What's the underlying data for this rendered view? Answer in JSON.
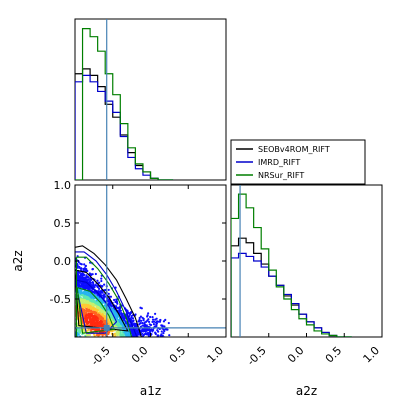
{
  "chart_data": [
    {
      "type": "histogram",
      "panel": "a1z marginal",
      "xlim": [
        -1.0,
        1.0
      ],
      "bins": [
        -1.0,
        -0.9,
        -0.8,
        -0.7,
        -0.6,
        -0.5,
        -0.4,
        -0.3,
        -0.2,
        -0.1,
        0.0,
        0.1,
        0.2,
        0.3
      ],
      "series": [
        {
          "name": "SEOBv4ROM_RIFT",
          "color": "#000000",
          "values": [
            0.66,
            0.69,
            0.65,
            0.58,
            0.47,
            0.39,
            0.28,
            0.17,
            0.09,
            0.05,
            0.01,
            0.0,
            0.0
          ]
        },
        {
          "name": "IMRD_RIFT",
          "color": "#0000cc",
          "values": [
            0.61,
            0.65,
            0.61,
            0.55,
            0.49,
            0.42,
            0.27,
            0.14,
            0.07,
            0.03,
            0.01,
            0.0,
            0.0
          ]
        },
        {
          "name": "NRSur_RIFT",
          "color": "#007f00",
          "values": [
            0.0,
            0.94,
            0.89,
            0.8,
            0.66,
            0.53,
            0.35,
            0.2,
            0.1,
            0.05,
            0.01,
            0.0,
            0.0
          ]
        }
      ],
      "reference_line": {
        "x": -0.58,
        "color": "#4682b4"
      }
    },
    {
      "type": "scatter",
      "panel": "a1z vs a2z joint",
      "xlabel": "a1z",
      "ylabel": "a2z",
      "xlim": [
        -1.0,
        1.0
      ],
      "ylim": [
        -1.0,
        1.0
      ],
      "xticks": [
        "-0.5",
        "0.0",
        "0.5",
        "1.0"
      ],
      "yticks": [
        "1.0",
        "0.5",
        "0.0",
        "-0.5"
      ],
      "colormap": [
        "#0d0dff",
        "#28b4f0",
        "#5fe8b0",
        "#c8f06e",
        "#ffc832",
        "#ff6420",
        "#ff2a10"
      ],
      "reference_point": {
        "x": -0.58,
        "y": -0.88
      },
      "contours": [
        {
          "series": "SEOBv4ROM_RIFT",
          "color": "#000000",
          "level": "outer",
          "points": [
            [
              -1.0,
              0.18
            ],
            [
              -0.9,
              0.2
            ],
            [
              -0.75,
              0.1
            ],
            [
              -0.6,
              -0.05
            ],
            [
              -0.45,
              -0.25
            ],
            [
              -0.32,
              -0.5
            ],
            [
              -0.2,
              -0.75
            ],
            [
              -0.12,
              -1.0
            ],
            [
              -1.0,
              -1.0
            ],
            [
              -1.0,
              0.18
            ]
          ]
        },
        {
          "series": "SEOBv4ROM_RIFT",
          "color": "#000000",
          "level": "inner",
          "points": [
            [
              -1.0,
              -0.12
            ],
            [
              -0.85,
              -0.15
            ],
            [
              -0.7,
              -0.3
            ],
            [
              -0.55,
              -0.48
            ],
            [
              -0.42,
              -0.7
            ],
            [
              -0.3,
              -0.92
            ],
            [
              -0.95,
              -0.85
            ],
            [
              -1.0,
              -0.12
            ]
          ]
        },
        {
          "series": "IMRD_RIFT",
          "color": "#0000cc",
          "level": "outer",
          "points": [
            [
              -1.0,
              0.12
            ],
            [
              -0.88,
              0.12
            ],
            [
              -0.72,
              0.0
            ],
            [
              -0.58,
              -0.18
            ],
            [
              -0.45,
              -0.4
            ],
            [
              -0.33,
              -0.65
            ],
            [
              -0.22,
              -0.9
            ],
            [
              -0.18,
              -1.0
            ],
            [
              -1.0,
              -1.0
            ],
            [
              -1.0,
              0.12
            ]
          ]
        },
        {
          "series": "IMRD_RIFT",
          "color": "#0000cc",
          "level": "inner",
          "points": [
            [
              -1.0,
              -0.25
            ],
            [
              -0.85,
              -0.28
            ],
            [
              -0.7,
              -0.42
            ],
            [
              -0.55,
              -0.6
            ],
            [
              -0.45,
              -0.8
            ],
            [
              -0.6,
              -0.95
            ],
            [
              -0.85,
              -0.95
            ],
            [
              -1.0,
              -0.25
            ]
          ]
        },
        {
          "series": "NRSur_RIFT",
          "color": "#007f00",
          "level": "outer",
          "points": [
            [
              -0.98,
              0.05
            ],
            [
              -0.85,
              0.05
            ],
            [
              -0.7,
              -0.1
            ],
            [
              -0.55,
              -0.3
            ],
            [
              -0.42,
              -0.52
            ],
            [
              -0.32,
              -0.75
            ],
            [
              -0.25,
              -1.0
            ],
            [
              -0.98,
              -1.0
            ],
            [
              -0.98,
              0.05
            ]
          ]
        },
        {
          "series": "NRSur_RIFT",
          "color": "#007f00",
          "level": "inner",
          "points": [
            [
              -0.97,
              -0.35
            ],
            [
              -0.8,
              -0.4
            ],
            [
              -0.66,
              -0.55
            ],
            [
              -0.55,
              -0.72
            ],
            [
              -0.48,
              -0.9
            ],
            [
              -0.9,
              -0.95
            ],
            [
              -0.97,
              -0.35
            ]
          ]
        }
      ]
    },
    {
      "type": "histogram",
      "panel": "a2z marginal",
      "xlim": [
        -1.0,
        1.0
      ],
      "xticks": [
        "-0.5",
        "0.0",
        "0.5",
        "1.0"
      ],
      "bins": [
        -1.0,
        -0.9,
        -0.8,
        -0.7,
        -0.6,
        -0.5,
        -0.4,
        -0.3,
        -0.2,
        -0.1,
        0.0,
        0.1,
        0.2,
        0.3,
        0.4,
        0.5,
        0.6
      ],
      "series": [
        {
          "name": "SEOBv4ROM_RIFT",
          "color": "#000000",
          "values": [
            0.6,
            0.65,
            0.62,
            0.55,
            0.48,
            0.4,
            0.34,
            0.27,
            0.21,
            0.15,
            0.1,
            0.06,
            0.03,
            0.01,
            0.0,
            0.0
          ]
        },
        {
          "name": "IMRD_RIFT",
          "color": "#0000cc",
          "values": [
            0.52,
            0.55,
            0.53,
            0.5,
            0.46,
            0.4,
            0.34,
            0.28,
            0.22,
            0.15,
            0.1,
            0.06,
            0.03,
            0.01,
            0.0,
            0.0
          ]
        },
        {
          "name": "NRSur_RIFT",
          "color": "#007f00",
          "values": [
            0.78,
            0.94,
            0.85,
            0.72,
            0.58,
            0.44,
            0.33,
            0.25,
            0.18,
            0.12,
            0.08,
            0.04,
            0.02,
            0.01,
            0.0,
            0.0
          ]
        }
      ],
      "reference_line": {
        "x": -0.88,
        "color": "#4682b4"
      }
    }
  ]
}
